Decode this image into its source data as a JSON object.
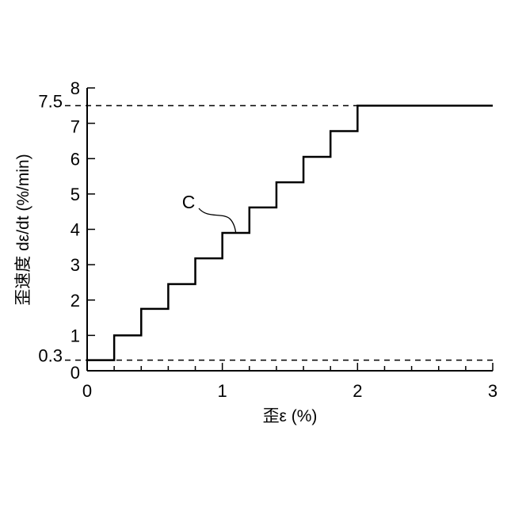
{
  "chart_data": {
    "type": "line",
    "title": "",
    "xlabel": "歪ε (%)",
    "ylabel": "歪速度 dε/dt (%/min)",
    "xlim": [
      0,
      3
    ],
    "ylim": [
      0,
      8
    ],
    "x_ticks": [
      "0",
      "1",
      "2",
      "3"
    ],
    "y_ticks": [
      "0",
      "1",
      "2",
      "3",
      "4",
      "5",
      "6",
      "7",
      "8"
    ],
    "extra_y_ticks": [
      "0.3",
      "7.5"
    ],
    "grid": false,
    "series": [
      {
        "step": true,
        "x": [
          0,
          0.2,
          0.4,
          0.6,
          0.8,
          1.0,
          1.2,
          1.4,
          1.6,
          1.8,
          2.0,
          3.0
        ],
        "y": [
          0.3,
          1.0,
          1.75,
          2.45,
          3.18,
          3.9,
          4.62,
          5.33,
          6.05,
          6.78,
          7.5,
          7.5
        ]
      }
    ],
    "reference_lines": [
      {
        "y": 7.5,
        "style": "dashed"
      },
      {
        "y": 0.3,
        "style": "dashed"
      }
    ],
    "annotations": [
      {
        "text": "C",
        "x": 1.1,
        "y": 3.9
      }
    ]
  }
}
